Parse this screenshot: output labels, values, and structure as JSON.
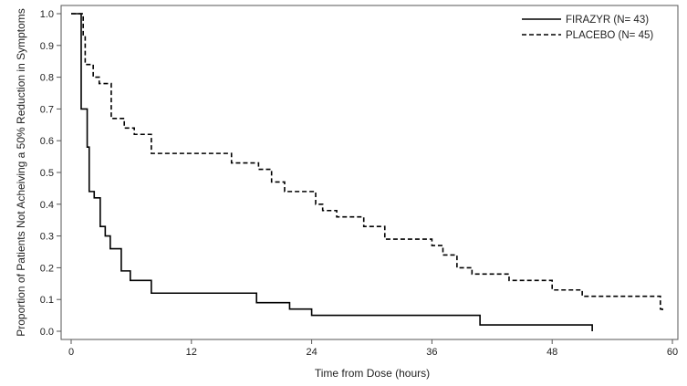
{
  "chart_data": {
    "type": "line",
    "title": "",
    "xlabel": "Time from Dose (hours)",
    "ylabel": "Proportion of Patients Not Acheiving a 50% Reduction in Symptoms",
    "xlim": [
      0,
      60
    ],
    "ylim": [
      0,
      1.0
    ],
    "xticks": [
      0,
      12,
      24,
      36,
      48,
      60
    ],
    "yticks": [
      0.0,
      0.1,
      0.2,
      0.3,
      0.4,
      0.5,
      0.6,
      0.7,
      0.8,
      0.9,
      1.0
    ],
    "xtick_labels": [
      "0",
      "12",
      "24",
      "36",
      "48",
      "60"
    ],
    "ytick_labels": [
      "0.0",
      "0.1",
      "0.2",
      "0.3",
      "0.4",
      "0.5",
      "0.6",
      "0.7",
      "0.8",
      "0.9",
      "1.0"
    ],
    "grid": false,
    "legend_position": "top-right",
    "step": true,
    "series": [
      {
        "name": "FIRAZYR (N= 43)",
        "line_style": "solid",
        "color": "#000000",
        "x": [
          0,
          0.9,
          1.0,
          1.6,
          1.8,
          2.3,
          2.9,
          3.4,
          3.9,
          5.0,
          5.9,
          8.0,
          18.5,
          21.8,
          24.0,
          40.8,
          52.0
        ],
        "y": [
          1.0,
          1.0,
          0.7,
          0.58,
          0.44,
          0.42,
          0.33,
          0.3,
          0.26,
          0.19,
          0.16,
          0.12,
          0.09,
          0.07,
          0.05,
          0.02,
          0.0
        ]
      },
      {
        "name": "PLACEBO (N= 45)",
        "line_style": "dashed",
        "color": "#000000",
        "x": [
          0,
          1.0,
          1.2,
          1.4,
          2.2,
          2.8,
          4.0,
          5.3,
          6.3,
          8.0,
          16.0,
          18.7,
          20.0,
          21.3,
          24.4,
          25.1,
          26.5,
          29.2,
          31.3,
          36.0,
          37.1,
          38.5,
          40.0,
          43.7,
          48.0,
          51.0,
          58.8,
          59.0
        ],
        "y": [
          1.0,
          1.0,
          0.93,
          0.84,
          0.8,
          0.78,
          0.67,
          0.64,
          0.62,
          0.56,
          0.53,
          0.51,
          0.47,
          0.44,
          0.4,
          0.38,
          0.36,
          0.33,
          0.29,
          0.27,
          0.24,
          0.2,
          0.18,
          0.16,
          0.13,
          0.11,
          0.07,
          0.06
        ]
      }
    ]
  }
}
